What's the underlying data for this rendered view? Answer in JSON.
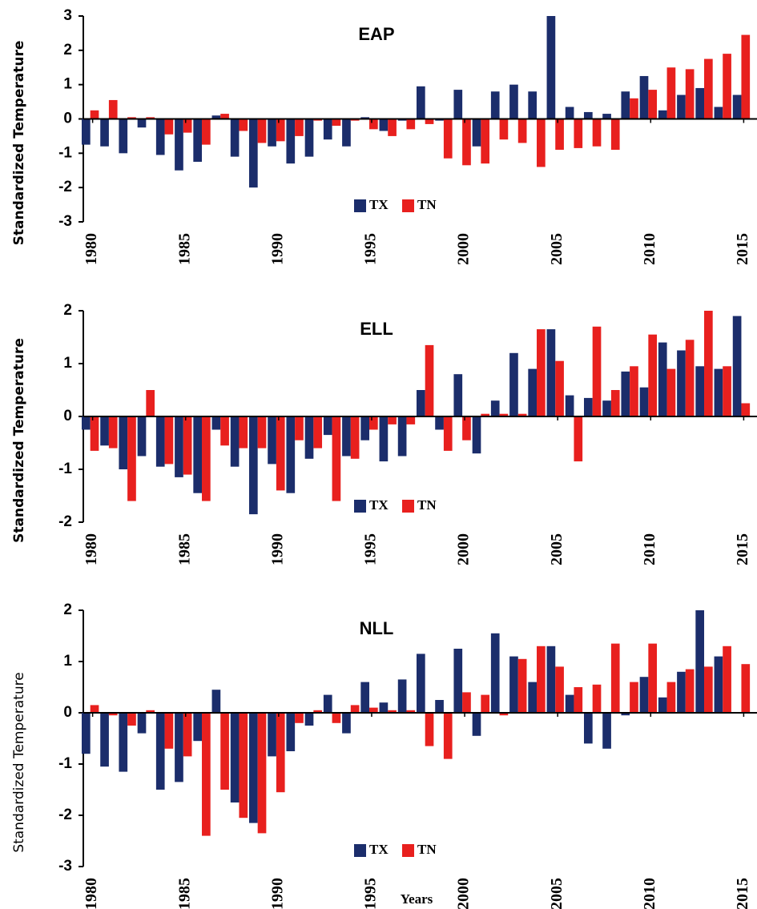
{
  "chart_data": [
    {
      "type": "bar",
      "title": "EAP",
      "y_label": "Standardized Temperature",
      "y_label_bold": true,
      "legend": "lower center",
      "x": [
        1980,
        1981,
        1982,
        1983,
        1984,
        1985,
        1986,
        1987,
        1988,
        1989,
        1990,
        1991,
        1992,
        1993,
        1994,
        1995,
        1996,
        1997,
        1998,
        1999,
        2000,
        2001,
        2002,
        2003,
        2004,
        2005,
        2006,
        2007,
        2008,
        2009,
        2010,
        2011,
        2012,
        2013,
        2014,
        2015
      ],
      "xlim": [
        1979.5,
        2015.5
      ],
      "xticks": [
        1980,
        1985,
        1990,
        1995,
        2000,
        2005,
        2010,
        2015
      ],
      "ylim": [
        -3,
        3
      ],
      "yticks": [
        -3,
        -2,
        -1,
        0,
        1,
        2,
        3
      ],
      "series": [
        {
          "name": "TX",
          "color": "#1b2d6b",
          "values": [
            -0.75,
            -0.8,
            -1.0,
            -0.25,
            -1.05,
            -1.5,
            -1.25,
            0.1,
            -1.1,
            -2.0,
            -0.8,
            -1.3,
            -1.1,
            -0.6,
            -0.8,
            0.05,
            -0.35,
            -0.05,
            0.95,
            -0.05,
            0.85,
            -0.8,
            0.8,
            1.0,
            0.8,
            3.0,
            0.35,
            0.2,
            0.15,
            0.8,
            1.25,
            0.25,
            0.7,
            0.9,
            0.35,
            0.7
          ]
        },
        {
          "name": "TN",
          "color": "#e8201e",
          "values": [
            0.25,
            0.55,
            0.05,
            0.05,
            -0.45,
            -0.4,
            -0.75,
            0.15,
            -0.35,
            -0.7,
            -0.65,
            -0.5,
            -0.05,
            -0.2,
            -0.05,
            -0.3,
            -0.5,
            -0.3,
            -0.15,
            -1.15,
            -1.35,
            -1.3,
            -0.6,
            -0.7,
            -1.4,
            -0.9,
            -0.85,
            -0.8,
            -0.9,
            0.6,
            0.85,
            1.5,
            1.45,
            1.75,
            1.9,
            2.45
          ]
        }
      ]
    },
    {
      "type": "bar",
      "title": "ELL",
      "y_label": "Standardized Temperature",
      "y_label_bold": true,
      "legend": "lower center",
      "x": [
        1980,
        1981,
        1982,
        1983,
        1984,
        1985,
        1986,
        1987,
        1988,
        1989,
        1990,
        1991,
        1992,
        1993,
        1994,
        1995,
        1996,
        1997,
        1998,
        1999,
        2000,
        2001,
        2002,
        2003,
        2004,
        2005,
        2006,
        2007,
        2008,
        2009,
        2010,
        2011,
        2012,
        2013,
        2014,
        2015
      ],
      "xlim": [
        1979.5,
        2015.5
      ],
      "xticks": [
        1980,
        1985,
        1990,
        1995,
        2000,
        2005,
        2010,
        2015
      ],
      "ylim": [
        -2,
        2
      ],
      "yticks": [
        -2,
        -1,
        0,
        1,
        2
      ],
      "series": [
        {
          "name": "TX",
          "color": "#1b2d6b",
          "values": [
            -0.25,
            -0.55,
            -1.0,
            -0.75,
            -0.95,
            -1.15,
            -1.45,
            -0.25,
            -0.95,
            -1.85,
            -0.9,
            -1.45,
            -0.8,
            -0.35,
            -0.75,
            -0.45,
            -0.85,
            -0.75,
            0.5,
            -0.25,
            0.8,
            -0.7,
            0.3,
            1.2,
            0.9,
            1.65,
            0.4,
            0.35,
            0.3,
            0.85,
            0.55,
            1.4,
            1.25,
            0.95,
            0.9,
            1.9
          ]
        },
        {
          "name": "TN",
          "color": "#e8201e",
          "values": [
            -0.65,
            -0.6,
            -1.6,
            0.5,
            -0.9,
            -1.1,
            -1.6,
            -0.55,
            -0.6,
            -0.6,
            -1.4,
            -0.45,
            -0.6,
            -1.6,
            -0.8,
            -0.25,
            -0.15,
            -0.15,
            1.35,
            -0.65,
            -0.45,
            0.05,
            0.05,
            0.05,
            1.65,
            1.05,
            -0.85,
            1.7,
            0.5,
            0.95,
            1.55,
            0.9,
            1.45,
            2.0,
            0.95,
            0.25
          ]
        }
      ]
    },
    {
      "type": "bar",
      "title": "NLL",
      "y_label": "Standardized Temperature",
      "y_label_bold": false,
      "x_label": "Years",
      "legend": "lower center",
      "x": [
        1980,
        1981,
        1982,
        1983,
        1984,
        1985,
        1986,
        1987,
        1988,
        1989,
        1990,
        1991,
        1992,
        1993,
        1994,
        1995,
        1996,
        1997,
        1998,
        1999,
        2000,
        2001,
        2002,
        2003,
        2004,
        2005,
        2006,
        2007,
        2008,
        2009,
        2010,
        2011,
        2012,
        2013,
        2014,
        2015
      ],
      "xlim": [
        1979.5,
        2015.5
      ],
      "xticks": [
        1980,
        1985,
        1990,
        1995,
        2000,
        2005,
        2010,
        2015
      ],
      "ylim": [
        -3,
        2
      ],
      "yticks": [
        -3,
        -2,
        -1,
        0,
        1,
        2
      ],
      "series": [
        {
          "name": "TX",
          "color": "#1b2d6b",
          "values": [
            -0.8,
            -1.05,
            -1.15,
            -0.4,
            -1.5,
            -1.35,
            -0.55,
            0.45,
            -1.75,
            -2.15,
            -0.85,
            -0.75,
            -0.25,
            0.35,
            -0.4,
            0.6,
            0.2,
            0.65,
            1.15,
            0.25,
            1.25,
            -0.45,
            1.55,
            1.1,
            0.6,
            1.3,
            0.35,
            -0.6,
            -0.7,
            -0.05,
            0.7,
            0.3,
            0.8,
            2.0,
            1.1,
            0
          ]
        },
        {
          "name": "TN",
          "color": "#e8201e",
          "values": [
            0.15,
            -0.05,
            -0.25,
            0.05,
            -0.7,
            -0.85,
            -2.4,
            -1.5,
            -2.05,
            -2.35,
            -1.55,
            -0.2,
            0.05,
            -0.2,
            0.15,
            0.1,
            0.05,
            0.05,
            -0.65,
            -0.9,
            0.4,
            0.35,
            -0.05,
            1.05,
            1.3,
            0.9,
            0.5,
            0.55,
            1.35,
            0.6,
            1.35,
            0.6,
            0.85,
            0.9,
            1.3,
            0.95
          ]
        }
      ]
    }
  ]
}
